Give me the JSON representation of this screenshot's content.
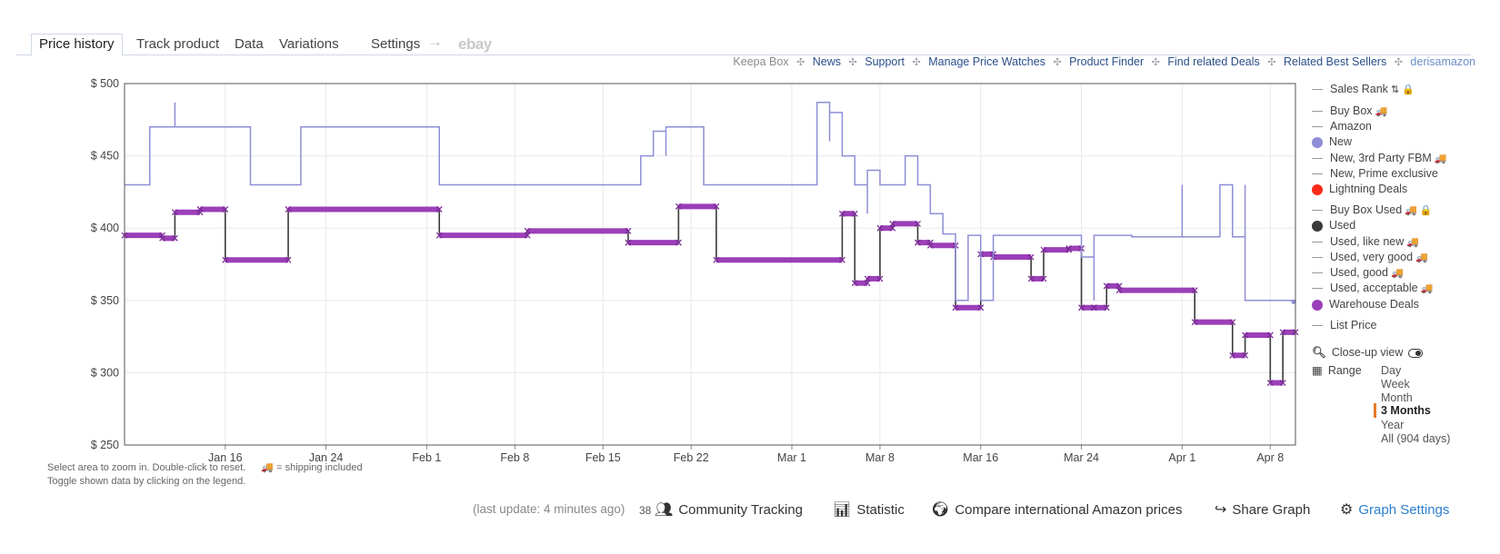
{
  "tabs": [
    {
      "label": "Price history",
      "active": true
    },
    {
      "label": "Track product"
    },
    {
      "label": "Data"
    },
    {
      "label": "Variations"
    },
    {
      "label": "Settings"
    }
  ],
  "tab_arrow": "→",
  "tab_ebay": "ebay",
  "top_links": {
    "keepa_box": "Keepa Box",
    "news": "News",
    "support": "Support",
    "manage": "Manage Price Watches",
    "finder": "Product Finder",
    "deals": "Find related Deals",
    "bestsellers": "Related Best Sellers",
    "user": "derisamazon",
    "separator": "✣"
  },
  "hint": {
    "line1": "Select area to zoom in. Double-click to reset.",
    "shipping": "= shipping included",
    "line2": "Toggle shown data by clicking on the legend."
  },
  "legend": {
    "items": [
      {
        "label": "Sales Rank",
        "marker": "line",
        "extra": "sort-icon lock-icon"
      },
      {
        "label": "Buy Box",
        "marker": "line",
        "truck": true
      },
      {
        "label": "Amazon",
        "marker": "line"
      },
      {
        "label": "New",
        "marker": "dot",
        "color": "#8e8ed6"
      },
      {
        "label": "New, 3rd Party FBM",
        "marker": "line",
        "truck": true
      },
      {
        "label": "New, Prime exclusive",
        "marker": "line"
      },
      {
        "label": "Lightning Deals",
        "marker": "dot",
        "color": "#ff2a1a"
      },
      {
        "label": "Buy Box Used",
        "marker": "line",
        "truck": true,
        "lock": true
      },
      {
        "label": "Used",
        "marker": "dot",
        "color": "#3a3a3a"
      },
      {
        "label": "Used, like new",
        "marker": "line",
        "truck": true
      },
      {
        "label": "Used, very good",
        "marker": "line",
        "truck": true
      },
      {
        "label": "Used, good",
        "marker": "line",
        "truck": true
      },
      {
        "label": "Used, acceptable",
        "marker": "line",
        "truck": true
      },
      {
        "label": "Warehouse Deals",
        "marker": "dot",
        "color": "#9b3fb8"
      },
      {
        "label": "List Price",
        "marker": "line"
      }
    ],
    "closeup": "Close-up view",
    "range_label": "Range",
    "ranges": [
      "Day",
      "Week",
      "Month",
      "3 Months",
      "Year",
      "All (904 days)"
    ],
    "range_selected": "3 Months"
  },
  "bottom_bar": {
    "last_update": "(last update: 4 minutes ago)",
    "count": "38",
    "community": "Community Tracking",
    "statistic": "Statistic",
    "compare": "Compare international Amazon prices",
    "share": "Share Graph",
    "settings": "Graph Settings"
  },
  "colors": {
    "new": "#8e8ed6",
    "used": "#3a3a3a",
    "warehouse": "#9b3fb8",
    "link": "#2b4f8a",
    "accent": "#2d7fcf"
  },
  "chart_data": {
    "type": "line",
    "title": "",
    "x_axis_type": "datetime",
    "xlim": [
      "2024-01-08",
      "2024-04-10"
    ],
    "ylim": [
      250,
      500
    ],
    "y_ticks": [
      250,
      300,
      350,
      400,
      450,
      500
    ],
    "y_tick_labels": [
      "$ 250",
      "$ 300",
      "$ 350",
      "$ 400",
      "$ 450",
      "$ 500"
    ],
    "x_ticks": [
      {
        "date": "2024-01-16",
        "label": "Jan 16"
      },
      {
        "date": "2024-01-24",
        "label": "Jan 24"
      },
      {
        "date": "2024-02-01",
        "label": "Feb 1"
      },
      {
        "date": "2024-02-08",
        "label": "Feb 8"
      },
      {
        "date": "2024-02-15",
        "label": "Feb 15"
      },
      {
        "date": "2024-02-22",
        "label": "Feb 22"
      },
      {
        "date": "2024-03-01",
        "label": "Mar 1"
      },
      {
        "date": "2024-03-08",
        "label": "Mar 8"
      },
      {
        "date": "2024-03-16",
        "label": "Mar 16"
      },
      {
        "date": "2024-03-24",
        "label": "Mar 24"
      },
      {
        "date": "2024-04-01",
        "label": "Apr 1"
      },
      {
        "date": "2024-04-08",
        "label": "Apr 8"
      }
    ],
    "grid": true,
    "legend_position": "right",
    "series": [
      {
        "name": "New",
        "style": "step",
        "points": [
          [
            "2024-01-08",
            430
          ],
          [
            "2024-01-10",
            470
          ],
          [
            "2024-01-12",
            470
          ],
          [
            "2024-01-12",
            487
          ],
          [
            "2024-01-12",
            470
          ],
          [
            "2024-01-15",
            470
          ],
          [
            "2024-01-18",
            430
          ],
          [
            "2024-01-22",
            470
          ],
          [
            "2024-02-02",
            430
          ],
          [
            "2024-02-18",
            450
          ],
          [
            "2024-02-19",
            467
          ],
          [
            "2024-02-20",
            450
          ],
          [
            "2024-02-20",
            470
          ],
          [
            "2024-02-23",
            430
          ],
          [
            "2024-02-23",
            460
          ],
          [
            "2024-02-23",
            430
          ],
          [
            "2024-03-03",
            487
          ],
          [
            "2024-03-04",
            460
          ],
          [
            "2024-03-04",
            480
          ],
          [
            "2024-03-05",
            450
          ],
          [
            "2024-03-06",
            430
          ],
          [
            "2024-03-07",
            410
          ],
          [
            "2024-03-07",
            440
          ],
          [
            "2024-03-08",
            430
          ],
          [
            "2024-03-10",
            450
          ],
          [
            "2024-03-11",
            430
          ],
          [
            "2024-03-12",
            410
          ],
          [
            "2024-03-13",
            396
          ],
          [
            "2024-03-14",
            350
          ],
          [
            "2024-03-15",
            395
          ],
          [
            "2024-03-16",
            350
          ],
          [
            "2024-03-17",
            395
          ],
          [
            "2024-03-23",
            395
          ],
          [
            "2024-03-24",
            380
          ],
          [
            "2024-03-25",
            350
          ],
          [
            "2024-03-25",
            395
          ],
          [
            "2024-03-28",
            394
          ],
          [
            "2024-04-01",
            394
          ],
          [
            "2024-04-01",
            430
          ],
          [
            "2024-04-01",
            394
          ],
          [
            "2024-04-04",
            394
          ],
          [
            "2024-04-04",
            430
          ],
          [
            "2024-04-05",
            394
          ],
          [
            "2024-04-06",
            430
          ],
          [
            "2024-04-06",
            394
          ],
          [
            "2024-04-06",
            350
          ],
          [
            "2024-04-10",
            349
          ]
        ]
      },
      {
        "name": "Used",
        "style": "step",
        "points": [
          [
            "2024-01-08",
            395
          ],
          [
            "2024-01-11",
            393
          ],
          [
            "2024-01-12",
            411
          ],
          [
            "2024-01-14",
            413
          ],
          [
            "2024-01-16",
            378
          ],
          [
            "2024-01-21",
            378
          ],
          [
            "2024-01-21",
            413
          ],
          [
            "2024-02-02",
            413
          ],
          [
            "2024-02-02",
            395
          ],
          [
            "2024-02-09",
            395
          ],
          [
            "2024-02-09",
            398
          ],
          [
            "2024-02-17",
            398
          ],
          [
            "2024-02-17",
            390
          ],
          [
            "2024-02-21",
            390
          ],
          [
            "2024-02-21",
            415
          ],
          [
            "2024-02-24",
            415
          ],
          [
            "2024-02-24",
            378
          ],
          [
            "2024-03-05",
            378
          ],
          [
            "2024-03-05",
            410
          ],
          [
            "2024-03-06",
            362
          ],
          [
            "2024-03-07",
            362
          ],
          [
            "2024-03-07",
            365
          ],
          [
            "2024-03-08",
            370
          ],
          [
            "2024-03-08",
            400
          ],
          [
            "2024-03-09",
            403
          ],
          [
            "2024-03-11",
            403
          ],
          [
            "2024-03-11",
            390
          ],
          [
            "2024-03-12",
            390
          ],
          [
            "2024-03-12",
            388
          ],
          [
            "2024-03-14",
            345
          ],
          [
            "2024-03-16",
            345
          ],
          [
            "2024-03-16",
            382
          ],
          [
            "2024-03-17",
            380
          ],
          [
            "2024-03-20",
            380
          ],
          [
            "2024-03-20",
            365
          ],
          [
            "2024-03-21",
            385
          ],
          [
            "2024-03-23",
            386
          ],
          [
            "2024-03-24",
            386
          ],
          [
            "2024-03-24",
            345
          ],
          [
            "2024-03-25",
            345
          ],
          [
            "2024-03-26",
            360
          ],
          [
            "2024-03-27",
            357
          ],
          [
            "2024-04-02",
            355
          ],
          [
            "2024-04-02",
            335
          ],
          [
            "2024-04-05",
            335
          ],
          [
            "2024-04-05",
            312
          ],
          [
            "2024-04-06",
            312
          ],
          [
            "2024-04-06",
            326
          ],
          [
            "2024-04-08",
            326
          ],
          [
            "2024-04-08",
            293
          ],
          [
            "2024-04-09",
            293
          ],
          [
            "2024-04-09",
            328
          ],
          [
            "2024-04-10",
            328
          ]
        ]
      },
      {
        "name": "Warehouse Deals",
        "style": "step-thick-markers",
        "points": [
          [
            "2024-01-08",
            395
          ],
          [
            "2024-01-11",
            393
          ],
          [
            "2024-01-12",
            411
          ],
          [
            "2024-01-14",
            413
          ],
          [
            "2024-01-16",
            378
          ],
          [
            "2024-01-21",
            378
          ],
          [
            "2024-01-21",
            413
          ],
          [
            "2024-02-02",
            413
          ],
          [
            "2024-02-02",
            395
          ],
          [
            "2024-02-09",
            395
          ],
          [
            "2024-02-09",
            398
          ],
          [
            "2024-02-17",
            398
          ],
          [
            "2024-02-17",
            390
          ],
          [
            "2024-02-21",
            390
          ],
          [
            "2024-02-21",
            415
          ],
          [
            "2024-02-24",
            415
          ],
          [
            "2024-02-24",
            378
          ],
          [
            "2024-03-05",
            378
          ],
          [
            "2024-03-05",
            410
          ],
          [
            "2024-03-06",
            362
          ],
          [
            "2024-03-07",
            362
          ],
          [
            "2024-03-07",
            365
          ],
          [
            "2024-03-08",
            370
          ],
          [
            "2024-03-08",
            400
          ],
          [
            "2024-03-09",
            403
          ],
          [
            "2024-03-11",
            403
          ],
          [
            "2024-03-11",
            390
          ],
          [
            "2024-03-12",
            390
          ],
          [
            "2024-03-12",
            388
          ],
          [
            "2024-03-14",
            345
          ],
          [
            "2024-03-16",
            345
          ],
          [
            "2024-03-16",
            382
          ],
          [
            "2024-03-17",
            380
          ],
          [
            "2024-03-20",
            380
          ],
          [
            "2024-03-20",
            365
          ],
          [
            "2024-03-21",
            385
          ],
          [
            "2024-03-23",
            386
          ],
          [
            "2024-03-24",
            386
          ],
          [
            "2024-03-24",
            345
          ],
          [
            "2024-03-25",
            345
          ],
          [
            "2024-03-26",
            360
          ],
          [
            "2024-03-27",
            357
          ],
          [
            "2024-04-02",
            355
          ],
          [
            "2024-04-02",
            335
          ],
          [
            "2024-04-05",
            335
          ],
          [
            "2024-04-05",
            312
          ],
          [
            "2024-04-06",
            312
          ],
          [
            "2024-04-06",
            326
          ],
          [
            "2024-04-08",
            326
          ],
          [
            "2024-04-08",
            293
          ],
          [
            "2024-04-09",
            293
          ],
          [
            "2024-04-09",
            328
          ],
          [
            "2024-04-10",
            328
          ]
        ]
      }
    ]
  }
}
